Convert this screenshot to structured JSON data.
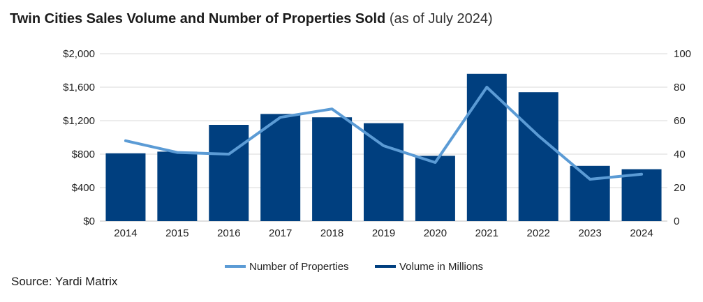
{
  "title": {
    "main": "Twin Cities Sales Volume and Number of Properties Sold",
    "sub": "(as of July 2024)"
  },
  "source": "Source: Yardi Matrix",
  "colors": {
    "bars": "#003f7f",
    "line": "#5b9bd5",
    "grid": "#d9d9d9",
    "axis": "#bfbfbf"
  },
  "chart_data": {
    "type": "bar+line",
    "title": "Twin Cities Sales Volume and Number of Properties Sold (as of July 2024)",
    "categories": [
      "2014",
      "2015",
      "2016",
      "2017",
      "2018",
      "2019",
      "2020",
      "2021",
      "2022",
      "2023",
      "2024"
    ],
    "series": [
      {
        "name": "Volume in Millions",
        "type": "bar",
        "axis": "left",
        "values": [
          810,
          830,
          1150,
          1280,
          1240,
          1170,
          780,
          1760,
          1540,
          660,
          620
        ]
      },
      {
        "name": "Number of Properties",
        "type": "line",
        "axis": "right",
        "values": [
          48,
          41,
          40,
          62,
          67,
          45,
          35,
          80,
          51,
          25,
          28
        ]
      }
    ],
    "y_left": {
      "ylim": [
        0,
        2000
      ],
      "ticks": [
        0,
        400,
        800,
        1200,
        1600,
        2000
      ],
      "tick_labels": [
        "$0",
        "$400",
        "$800",
        "$1,200",
        "$1,600",
        "$2,000"
      ]
    },
    "y_right": {
      "ylim": [
        0,
        100
      ],
      "ticks": [
        0,
        20,
        40,
        60,
        80,
        100
      ],
      "tick_labels": [
        "0",
        "20",
        "40",
        "60",
        "80",
        "100"
      ]
    },
    "grid": true,
    "legend": {
      "position": "bottom",
      "entries": [
        "Number of Properties",
        "Volume in Millions"
      ]
    }
  }
}
